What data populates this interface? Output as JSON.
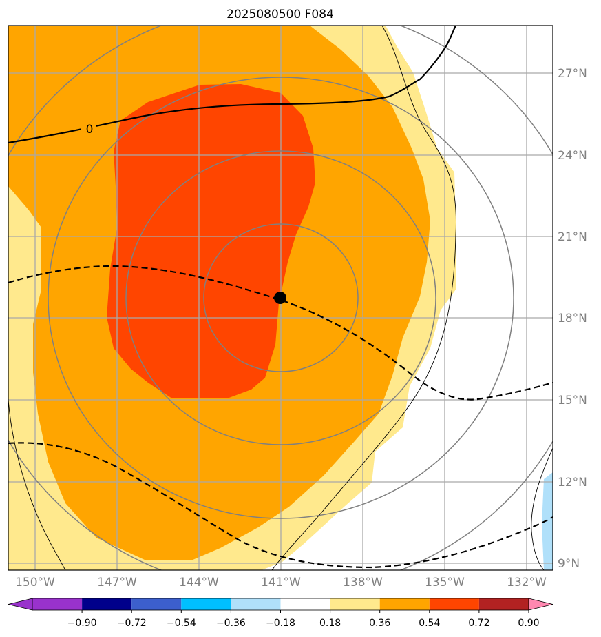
{
  "title": "2025080500 F084",
  "map": {
    "lon_labels": [
      "150°W",
      "147°W",
      "144°W",
      "141°W",
      "138°W",
      "135°W",
      "132°W"
    ],
    "lat_labels": [
      "27°N",
      "24°N",
      "21°N",
      "18°N",
      "15°N",
      "12°N",
      "9°N"
    ],
    "contour_label": "0",
    "center_marker": {
      "lon": -141,
      "lat": 18.7
    }
  },
  "colorbar": {
    "tick_labels": [
      "−0.90",
      "−0.72",
      "−0.54",
      "−0.36",
      "−0.18",
      "0.18",
      "0.36",
      "0.54",
      "0.72",
      "0.90"
    ],
    "colors": [
      "#9932cc",
      "#00008b",
      "#3c5fcd",
      "#00bfff",
      "#b0e0fa",
      "#ffffff",
      "#ffe98d",
      "#ffa500",
      "#ff4500",
      "#b22222",
      "#ff88b0"
    ]
  },
  "legend_colors": {
    "low": "#b0e0fa",
    "mid": "#ffe98d",
    "high": "#ffa500",
    "max": "#ff4500"
  }
}
